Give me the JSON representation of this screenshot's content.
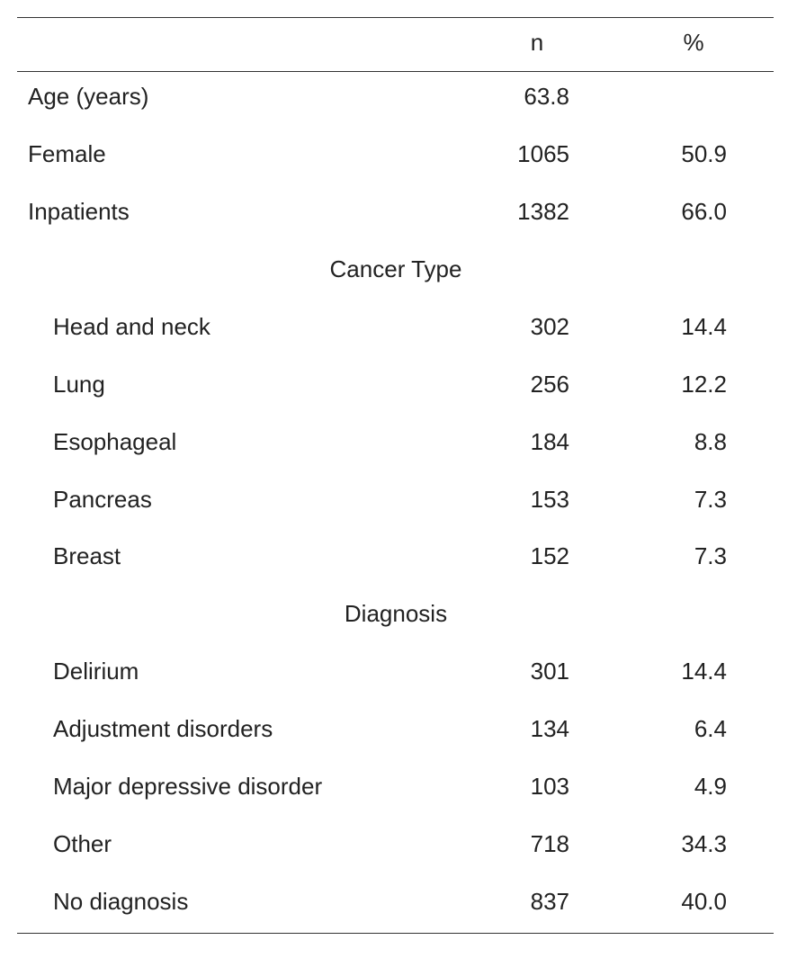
{
  "table": {
    "columns": [
      "n",
      "%"
    ],
    "rows": [
      {
        "label": "Age (years)",
        "n": "63.8"
      },
      {
        "label": "Female",
        "n": "1065",
        "pct": "50.9"
      },
      {
        "label": "Inpatients",
        "n": "1382",
        "pct": "66.0"
      }
    ],
    "sections": [
      {
        "title": "Cancer Type",
        "rows": [
          {
            "label": "Head and neck",
            "n": "302",
            "pct": "14.4"
          },
          {
            "label": "Lung",
            "n": "256",
            "pct": "12.2"
          },
          {
            "label": "Esophageal",
            "n": "184",
            "pct": "8.8"
          },
          {
            "label": "Pancreas",
            "n": "153",
            "pct": "7.3"
          },
          {
            "label": "Breast",
            "n": "152",
            "pct": "7.3"
          }
        ]
      },
      {
        "title": "Diagnosis",
        "rows": [
          {
            "label": "Delirium",
            "n": "301",
            "pct": "14.4"
          },
          {
            "label": "Adjustment disorders",
            "n": "134",
            "pct": "6.4"
          },
          {
            "label": "Major depressive disorder",
            "n": "103",
            "pct": "4.9"
          },
          {
            "label": "Other",
            "n": "718",
            "pct": "34.3"
          },
          {
            "label": "No diagnosis",
            "n": "837",
            "pct": "40.0"
          }
        ]
      }
    ]
  }
}
